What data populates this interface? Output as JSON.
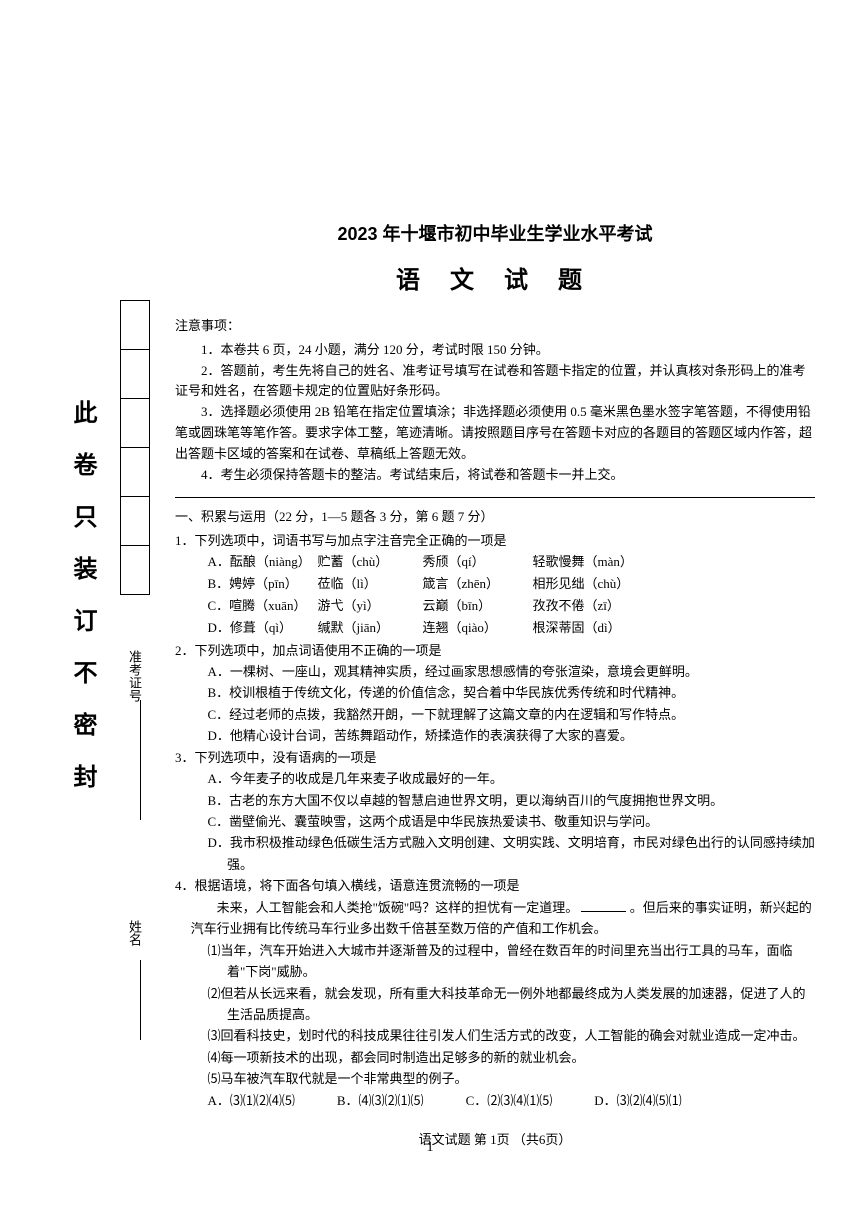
{
  "binding": {
    "vertical_text": "此卷只装订不密封",
    "exam_num_label": "准考证号",
    "name_label": "姓名"
  },
  "header": {
    "title_main": "2023 年十堰市初中毕业生学业水平考试",
    "title_sub": "语 文 试 题"
  },
  "notice": {
    "header": "注意事项：",
    "items": [
      "1．本卷共 6 页，24 小题，满分 120 分，考试时限 150 分钟。",
      "2．答题前，考生先将自己的姓名、准考证号填写在试卷和答题卡指定的位置，并认真核对条形码上的准考证号和姓名，在答题卡规定的位置贴好条形码。",
      "3．选择题必须使用 2B 铅笔在指定位置填涂；非选择题必须使用 0.5 毫米黑色墨水签字笔答题，不得使用铅笔或圆珠笔等笔作答。要求字体工整，笔迹清晰。请按照题目序号在答题卡对应的各题目的答题区域内作答，超出答题卡区域的答案和在试卷、草稿纸上答题无效。",
      "4．考生必须保持答题卡的整洁。考试结束后，将试卷和答题卡一并上交。"
    ]
  },
  "section1": {
    "header": "一、积累与运用（22 分，1—5 题各 3 分，第 6 题 7 分）"
  },
  "q1": {
    "stem": "1．下列选项中，词语书写与加点字注音完全正确的一项是",
    "rows": [
      {
        "label": "A．酝酿（niàng）",
        "c2": "贮蓄（chù）",
        "c3": "秀颀（qí）",
        "c4": "轻歌慢舞（màn）"
      },
      {
        "label": "B．娉婷（pīn）",
        "c2": "莅临（lì）",
        "c3": "箴言（zhēn）",
        "c4": "相形见绌（chù）"
      },
      {
        "label": "C．喧腾（xuān）",
        "c2": "游弋（yì）",
        "c3": "云巅（bīn）",
        "c4": "孜孜不倦（zī）"
      },
      {
        "label": "D．修葺（qì）",
        "c2": "缄默（jiān）",
        "c3": "连翘（qiào）",
        "c4": "根深蒂固（dì）"
      }
    ]
  },
  "q2": {
    "stem": "2．下列选项中，加点词语使用不正确的一项是",
    "options": [
      "A．一棵树、一座山，观其精神实质，经过画家思想感情的夸张渲染，意境会更鲜明。",
      "B．校训根植于传统文化，传递的价值信念，契合着中华民族优秀传统和时代精神。",
      "C．经过老师的点拨，我豁然开朗，一下就理解了这篇文章的内在逻辑和写作特点。",
      "D．他精心设计台词，苦练舞蹈动作，矫揉造作的表演获得了大家的喜爱。"
    ]
  },
  "q3": {
    "stem": "3．下列选项中，没有语病的一项是",
    "options": [
      "A．今年麦子的收成是几年来麦子收成最好的一年。",
      "B．古老的东方大国不仅以卓越的智慧启迪世界文明，更以海纳百川的气度拥抱世界文明。",
      "C．凿壁偷光、囊萤映雪，这两个成语是中华民族热爱读书、敬重知识与学问。",
      "D．我市积极推动绿色低碳生活方式融入文明创建、文明实践、文明培育，市民对绿色出行的认同感持续加强。"
    ]
  },
  "q4": {
    "stem": "4．根据语境，将下面各句填入横线，语意连贯流畅的一项是",
    "intro1": "未来，人工智能会和人类抢\"饭碗\"吗？这样的担忧有一定道理。",
    "intro2": "。但后来的事实证明，新兴起的汽车行业拥有比传统马车行业多出数千倍甚至数万倍的产值和工作机会。",
    "items": [
      "⑴当年，汽车开始进入大城市并逐渐普及的过程中，曾经在数百年的时间里充当出行工具的马车，面临着\"下岗\"威胁。",
      "⑵但若从长远来看，就会发现，所有重大科技革命无一例外地都最终成为人类发展的加速器，促进了人的生活品质提高。",
      "⑶回看科技史，划时代的科技成果往往引发人们生活方式的改变，人工智能的确会对就业造成一定冲击。",
      "⑷每一项新技术的出现，都会同时制造出足够多的新的就业机会。",
      "⑸马车被汽车取代就是一个非常典型的例子。"
    ],
    "options": [
      "A．⑶⑴⑵⑷⑸",
      "B．⑷⑶⑵⑴⑸",
      "C．⑵⑶⑷⑴⑸",
      "D．⑶⑵⑷⑸⑴"
    ]
  },
  "footer": {
    "page_info": "语文试题  第 1页 （共6页）",
    "page_number": "1"
  }
}
